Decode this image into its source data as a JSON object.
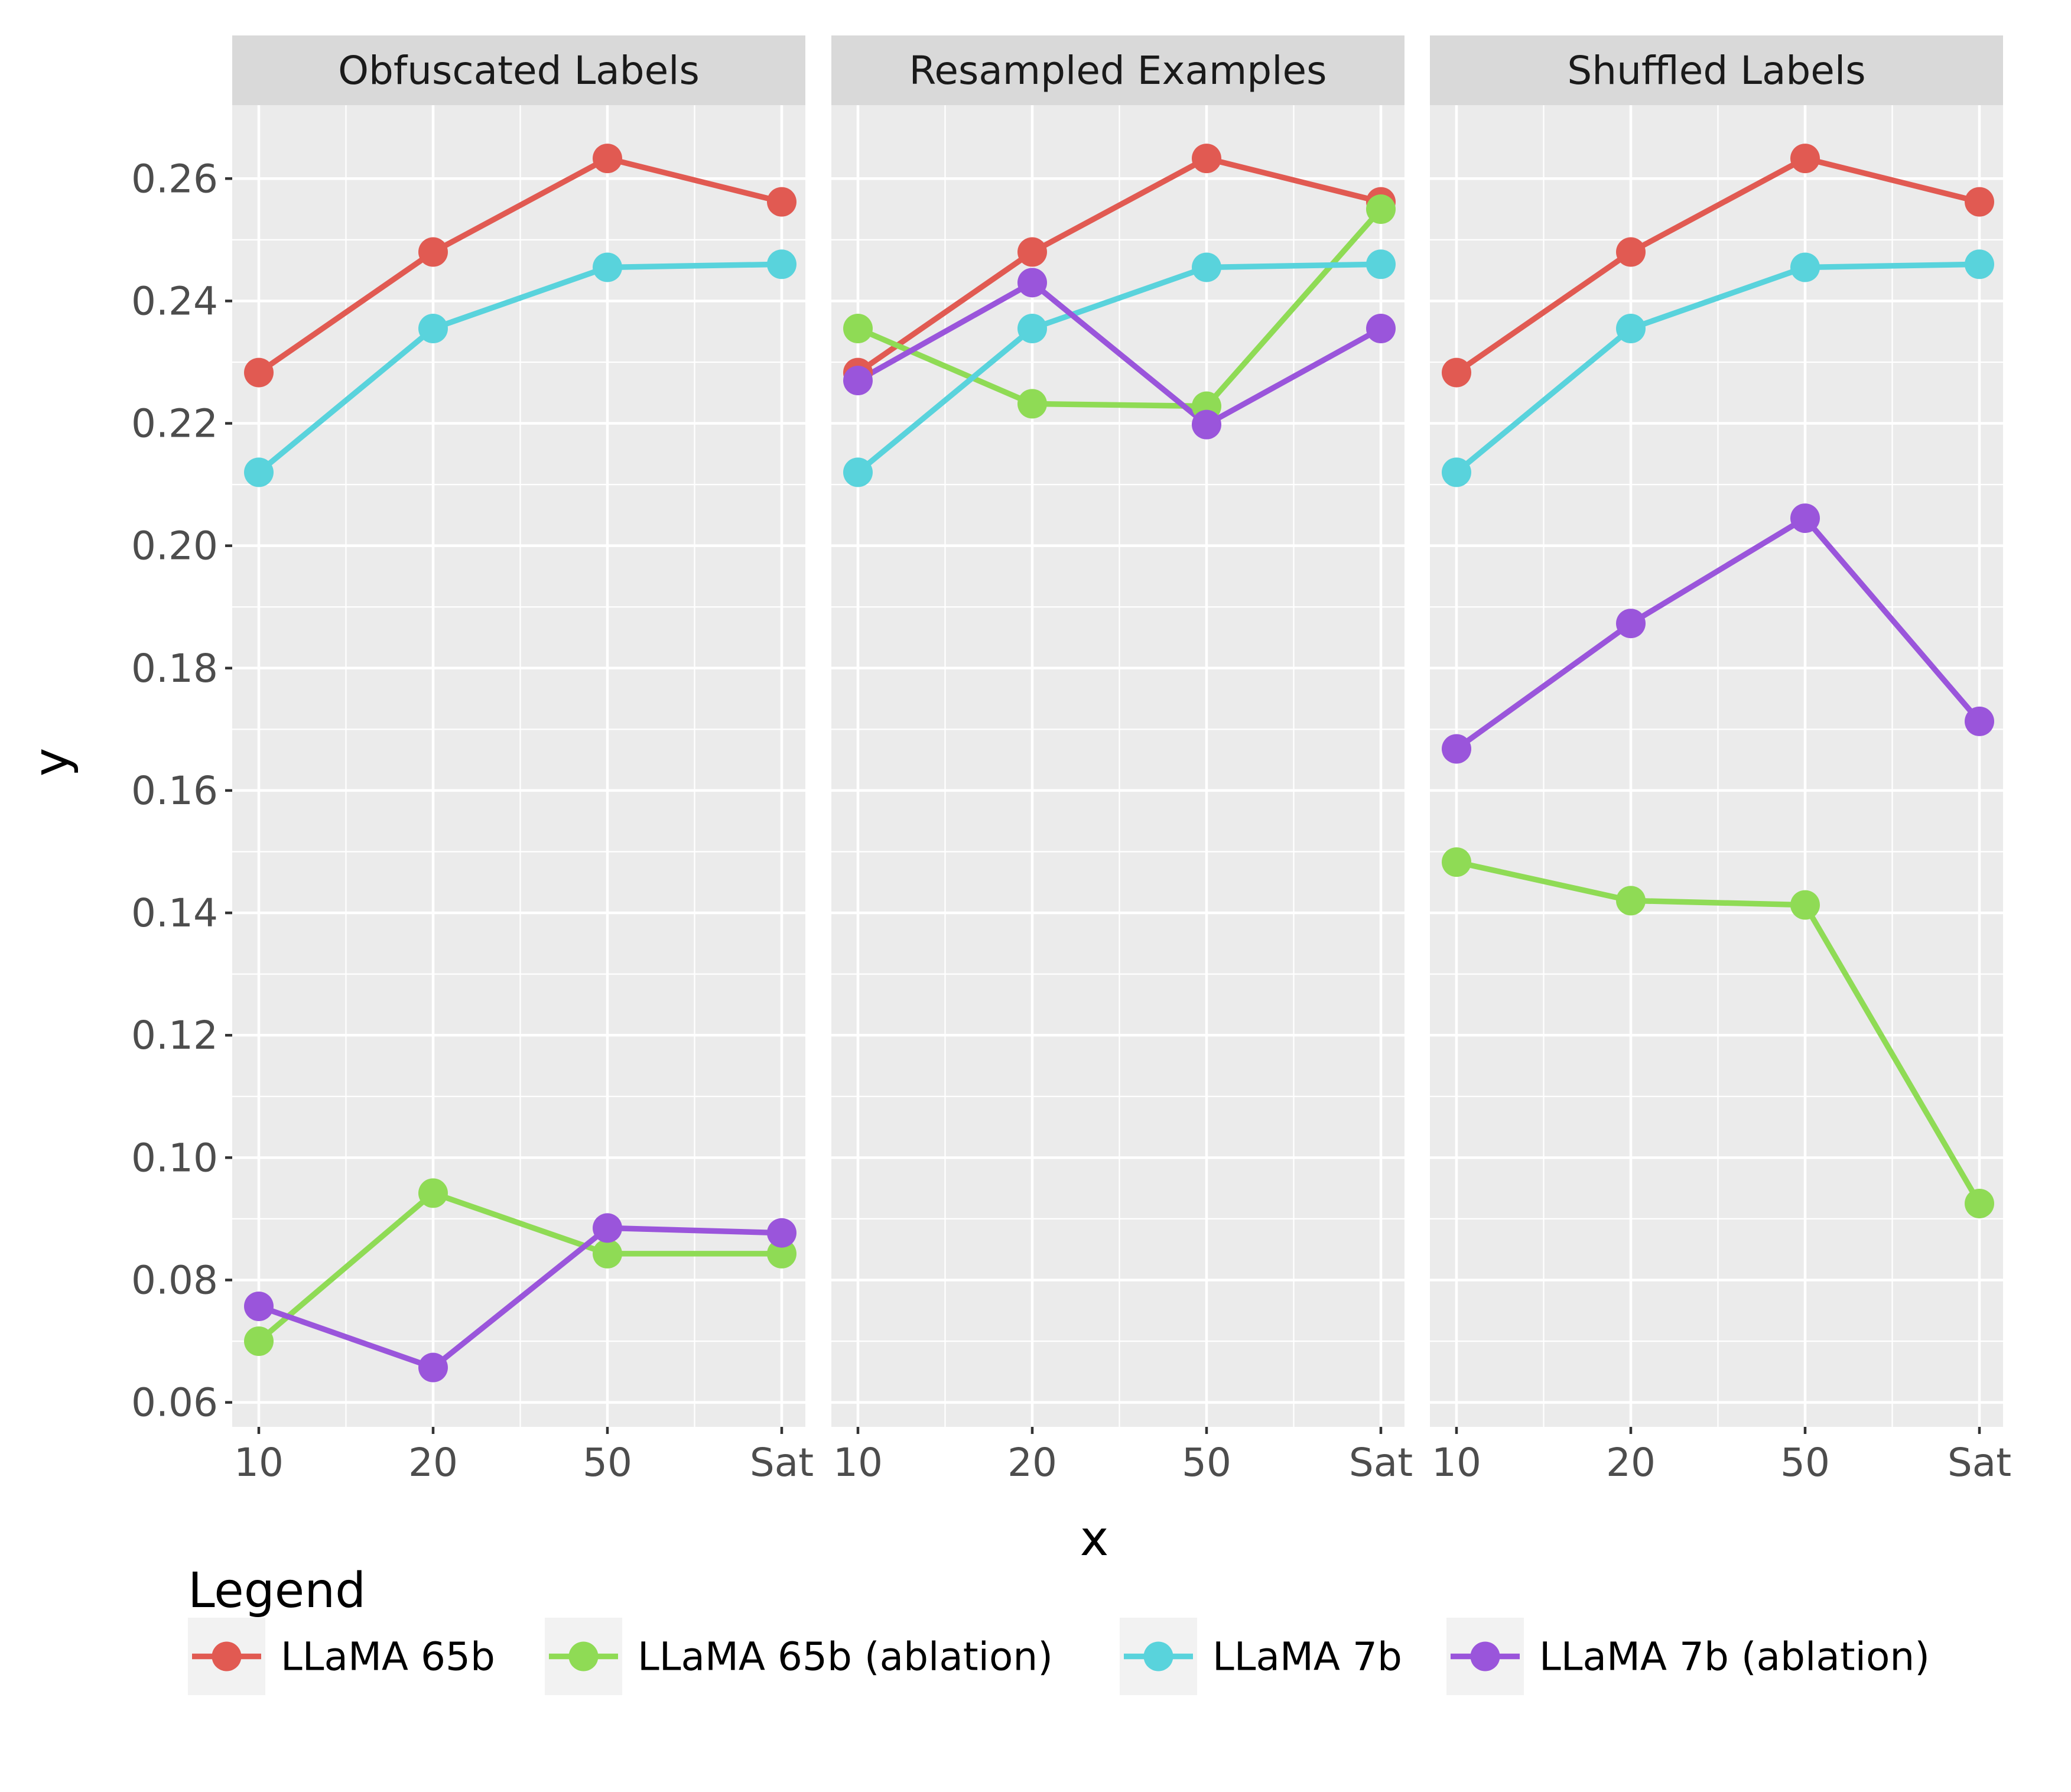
{
  "chart_data": {
    "type": "line",
    "xlabel": "x",
    "ylabel": "y",
    "categories": [
      "10",
      "20",
      "50",
      "Sat"
    ],
    "ylim": [
      0.056,
      0.272
    ],
    "y_ticks": [
      "0.06",
      "0.08",
      "0.10",
      "0.12",
      "0.14",
      "0.16",
      "0.18",
      "0.20",
      "0.22",
      "0.24",
      "0.26"
    ],
    "legend": {
      "title": "Legend",
      "position": "bottom",
      "entries": [
        {
          "name": "LLaMA 65b",
          "color": "#e15a52"
        },
        {
          "name": "LLaMA 65b (ablation)",
          "color": "#8fdb55"
        },
        {
          "name": "LLaMA 7b",
          "color": "#59d3dc"
        },
        {
          "name": "LLaMA 7b (ablation)",
          "color": "#9a55db"
        }
      ]
    },
    "panels": [
      {
        "title": "Obfuscated Labels",
        "series": [
          {
            "name": "LLaMA 65b",
            "values": [
              0.2283,
              0.248,
              0.2633,
              0.2562
            ]
          },
          {
            "name": "LLaMA 7b",
            "values": [
              0.212,
              0.2355,
              0.2455,
              0.246
            ]
          },
          {
            "name": "LLaMA 65b (ablation)",
            "values": [
              0.07,
              0.0942,
              0.0843,
              0.0843
            ]
          },
          {
            "name": "LLaMA 7b (ablation)",
            "values": [
              0.0757,
              0.0657,
              0.0885,
              0.0877
            ]
          }
        ]
      },
      {
        "title": "Resampled Examples",
        "series": [
          {
            "name": "LLaMA 65b",
            "values": [
              0.2283,
              0.248,
              0.2633,
              0.2562
            ]
          },
          {
            "name": "LLaMA 7b",
            "values": [
              0.212,
              0.2355,
              0.2455,
              0.246
            ]
          },
          {
            "name": "LLaMA 65b (ablation)",
            "values": [
              0.2355,
              0.2232,
              0.2228,
              0.255
            ]
          },
          {
            "name": "LLaMA 7b (ablation)",
            "values": [
              0.227,
              0.243,
              0.2198,
              0.2355
            ]
          }
        ]
      },
      {
        "title": "Shuffled Labels",
        "series": [
          {
            "name": "LLaMA 65b",
            "values": [
              0.2283,
              0.248,
              0.2633,
              0.2562
            ]
          },
          {
            "name": "LLaMA 7b",
            "values": [
              0.212,
              0.2355,
              0.2455,
              0.246
            ]
          },
          {
            "name": "LLaMA 65b (ablation)",
            "values": [
              0.1483,
              0.142,
              0.1413,
              0.0925
            ]
          },
          {
            "name": "LLaMA 7b (ablation)",
            "values": [
              0.1668,
              0.1873,
              0.2045,
              0.1713
            ]
          }
        ]
      }
    ]
  }
}
